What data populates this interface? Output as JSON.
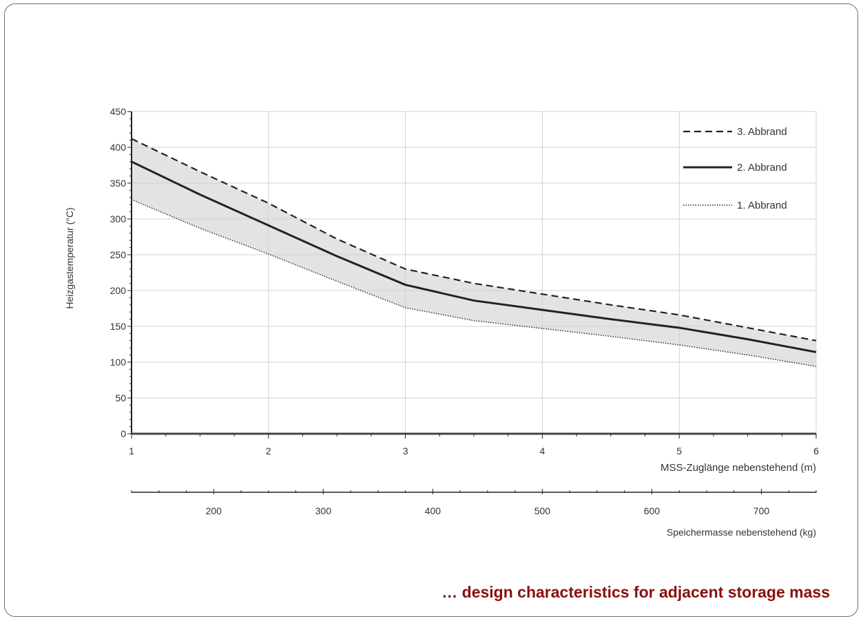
{
  "caption": "… design characteristics for adjacent storage mass",
  "colors": {
    "band_fill": "#e3e3e3",
    "line": "#222222",
    "grid": "#d0d0d0",
    "caption": "#8a0e0e"
  },
  "chart_data": {
    "type": "line",
    "ylabel": "Heizgastemperatur (°C)",
    "xlabel": "MSS-Zuglänge nebenstehend (m)",
    "x2label": "Speichermasse nebenstehend (kg)",
    "ylim": [
      0,
      450
    ],
    "xlim": [
      1,
      6
    ],
    "yticks": [
      "0",
      "50",
      "100",
      "150",
      "200",
      "250",
      "300",
      "350",
      "400",
      "450"
    ],
    "xticks": [
      "1",
      "2",
      "3",
      "4",
      "5",
      "6"
    ],
    "x2lim": [
      125,
      750
    ],
    "x2ticks": [
      "200",
      "300",
      "400",
      "500",
      "600",
      "700"
    ],
    "grid": true,
    "legend_position": "top-right",
    "shaded_band_between": [
      "1. Abbrand",
      "3. Abbrand"
    ],
    "series": [
      {
        "name": "3. Abbrand",
        "style": "dashed",
        "x": [
          1,
          1.5,
          2,
          2.5,
          3,
          3.5,
          4,
          4.5,
          5,
          5.5,
          6
        ],
        "y": [
          412,
          366,
          322,
          272,
          230,
          210,
          195,
          180,
          166,
          148,
          130
        ]
      },
      {
        "name": "2. Abbrand",
        "style": "solid",
        "x": [
          1,
          1.5,
          2,
          2.5,
          3,
          3.5,
          4,
          4.5,
          5,
          5.5,
          6
        ],
        "y": [
          380,
          334,
          291,
          248,
          208,
          186,
          173,
          160,
          148,
          132,
          114
        ]
      },
      {
        "name": "1. Abbrand",
        "style": "dotted",
        "x": [
          1,
          1.5,
          2,
          2.5,
          3,
          3.5,
          4,
          4.5,
          5,
          5.5,
          6
        ],
        "y": [
          327,
          287,
          251,
          213,
          176,
          158,
          147,
          136,
          124,
          110,
          94
        ]
      }
    ]
  }
}
